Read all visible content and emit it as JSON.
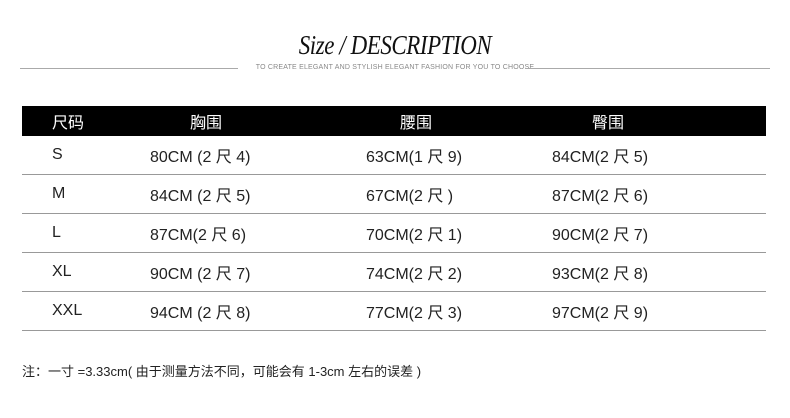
{
  "header": {
    "title": "Size / DESCRIPTION",
    "subtitle": "TO CREATE ELEGANT AND STYLISH ELEGANT FASHION FOR YOU TO CHOOSE"
  },
  "table": {
    "columns": [
      "尺码",
      "胸围",
      "腰围",
      "臀围"
    ],
    "rows": [
      [
        "S",
        "80CM (2 尺 4)",
        "63CM(1 尺 9)",
        "84CM(2 尺 5)"
      ],
      [
        "M",
        "84CM (2 尺 5)",
        "67CM(2 尺 )",
        "87CM(2 尺 6)"
      ],
      [
        "L",
        "87CM(2 尺 6)",
        "70CM(2 尺 1)",
        "90CM(2 尺 7)"
      ],
      [
        "XL",
        "90CM (2 尺 7)",
        "74CM(2 尺 2)",
        "93CM(2 尺 8)"
      ],
      [
        "XXL",
        "94CM (2 尺 8)",
        "77CM(2 尺 3)",
        "97CM(2 尺 9)"
      ]
    ]
  },
  "note": "注：一寸 =3.33cm( 由于测量方法不同，可能会有 1-3cm 左右的误差 )"
}
